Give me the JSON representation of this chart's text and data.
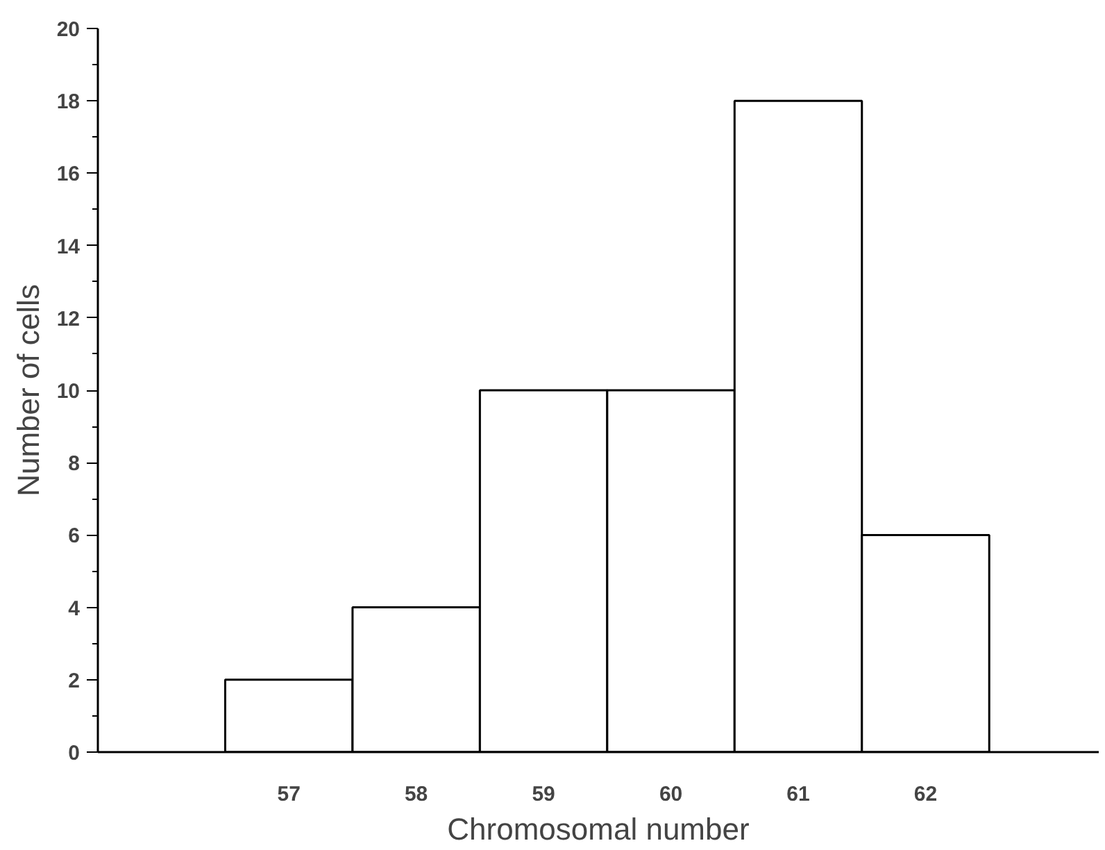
{
  "chart_data": {
    "type": "bar",
    "xlabel": "Chromosomal number",
    "ylabel": "Number of cells",
    "categories": [
      "57",
      "58",
      "59",
      "60",
      "61",
      "62"
    ],
    "values": [
      2,
      4,
      10,
      10,
      18,
      6
    ],
    "color": "#ffffff",
    "ylim": [
      0,
      20
    ],
    "yticks": [
      0,
      2,
      4,
      6,
      8,
      10,
      12,
      14,
      16,
      18,
      20
    ],
    "grid": false
  }
}
